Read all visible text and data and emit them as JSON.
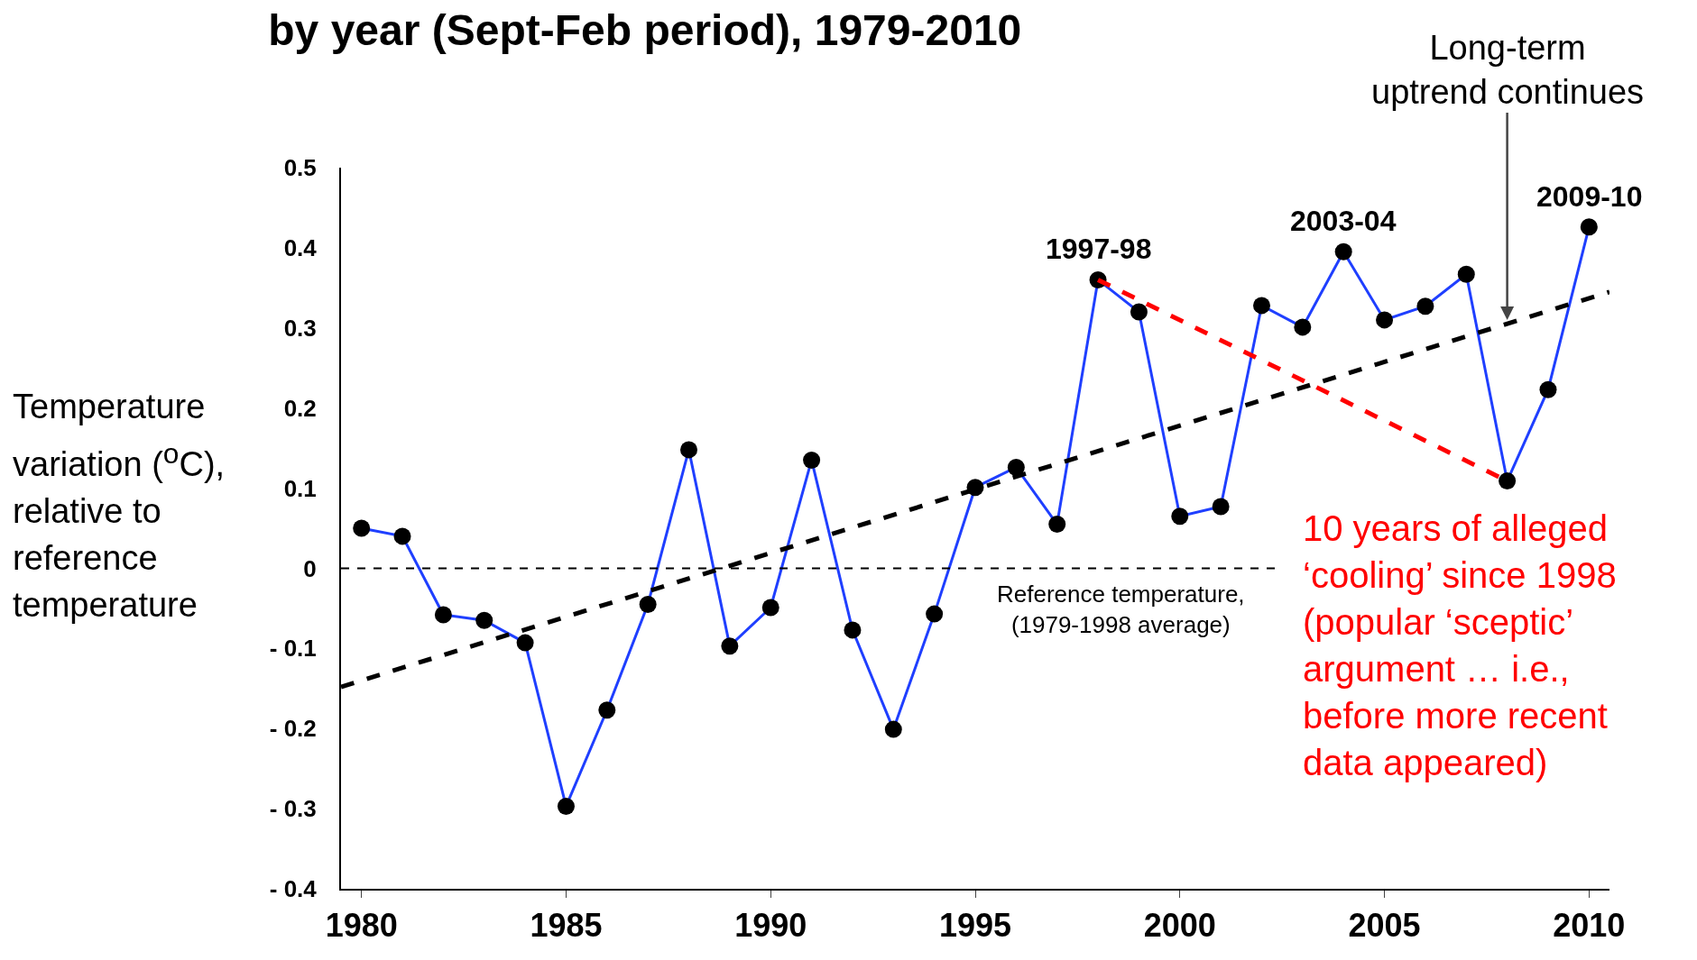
{
  "chart_data": {
    "type": "line",
    "title": "by year (Sept-Feb period), 1979-2010",
    "ylabel": "Temperature variation ($^{o}$C), relative to reference temperature",
    "x": [
      1980,
      1981,
      1982,
      1983,
      1984,
      1985,
      1986,
      1987,
      1988,
      1989,
      1990,
      1991,
      1992,
      1993,
      1994,
      1995,
      1996,
      1997,
      1998,
      1999,
      2000,
      2001,
      2002,
      2003,
      2004,
      2005,
      2006,
      2007,
      2008,
      2009,
      2010
    ],
    "series": [
      {
        "color": "#1f3fff",
        "marker": "circle",
        "values": [
          0.05,
          0.04,
          -0.058,
          -0.065,
          -0.093,
          -0.297,
          -0.177,
          -0.045,
          0.148,
          -0.097,
          -0.049,
          0.135,
          -0.077,
          -0.201,
          -0.057,
          0.101,
          0.126,
          0.055,
          0.36,
          0.32,
          0.065,
          0.077,
          0.328,
          0.301,
          0.395,
          0.31,
          0.327,
          0.367,
          0.109,
          0.223,
          0.426
        ]
      },
      {
        "type": "line",
        "color": "#000000",
        "line_style": "dashed",
        "marker": "none",
        "x": [
          1979.5,
          2010.5
        ],
        "values": [
          -0.148,
          0.345
        ]
      },
      {
        "type": "line",
        "color": "#ff0000",
        "line_style": "dashed",
        "marker": "none",
        "x": [
          1998,
          2008
        ],
        "values": [
          0.36,
          0.109
        ]
      }
    ],
    "xlim": [
      1979.5,
      2010.5
    ],
    "xticks": [
      1980,
      1985,
      1990,
      1995,
      2000,
      2005,
      2010
    ],
    "ylim": [
      -0.4,
      0.5
    ],
    "yticks": [
      {
        "value": -0.4,
        "label": "- 0.4"
      },
      {
        "value": -0.3,
        "label": "- 0.3"
      },
      {
        "value": -0.2,
        "label": "- 0.2"
      },
      {
        "value": -0.1,
        "label": "- 0.1"
      },
      0,
      0.1,
      0.2,
      0.3,
      0.4,
      0.5
    ],
    "ref_lines": [
      {
        "axis": "y",
        "value": 0,
        "label": "Reference temperature, (1979-1998 average)",
        "color": "#000000",
        "line_style": "dashed"
      }
    ],
    "annotations": [
      {
        "text": "1997-98",
        "x": 1998,
        "y": 0.36
      },
      {
        "text": "2003-04",
        "x": 2004,
        "y": 0.395
      },
      {
        "text": "2009-10",
        "x": 2010,
        "y": 0.426
      },
      {
        "text": "Long-term uptrend continues",
        "x": 2008,
        "y": 0.31
      },
      "10 years of alleged ‘cooling’ since 1998 (popular ‘sceptic’ argument … i.e., before more recent data appeared)"
    ]
  }
}
